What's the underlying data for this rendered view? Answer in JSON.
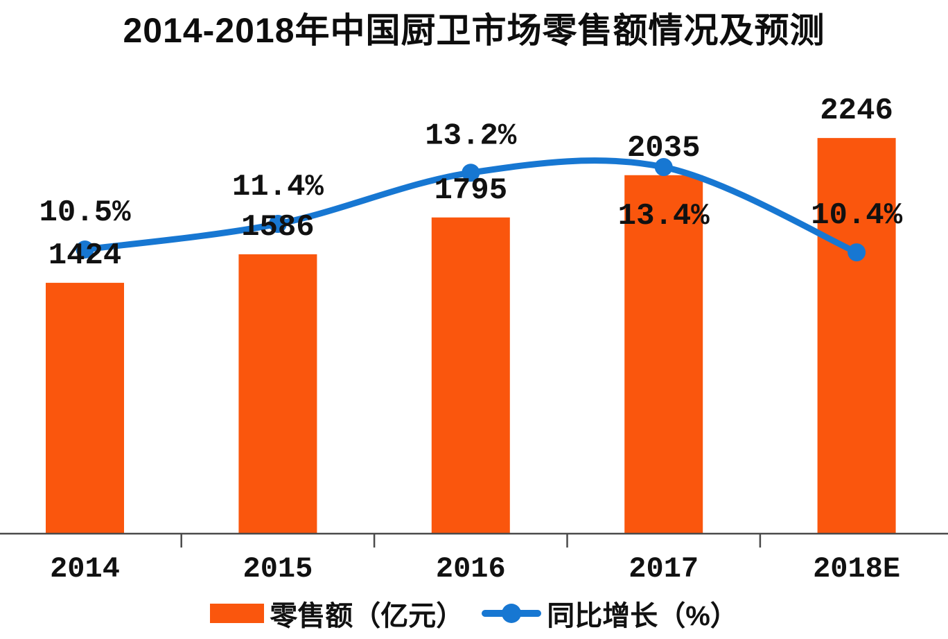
{
  "chart_data": {
    "type": "bar",
    "combo": "bar+line",
    "title": "2014-2018年中国厨卫市场零售额情况及预测",
    "categories": [
      "2014",
      "2015",
      "2016",
      "2017",
      "2018E"
    ],
    "series": [
      {
        "name": "零售额（亿元）",
        "type": "bar",
        "values": [
          1424,
          1586,
          1795,
          2035,
          2246
        ],
        "labels": [
          "1424",
          "1586",
          "1795",
          "2035",
          "2246"
        ],
        "color": "#FA560D",
        "axis": "left"
      },
      {
        "name": "同比增长（%）",
        "type": "line",
        "values": [
          10.5,
          11.4,
          13.2,
          13.4,
          10.4
        ],
        "labels": [
          "10.5%",
          "11.4%",
          "13.2%",
          "13.4%",
          "10.4%"
        ],
        "color": "#1777D2",
        "axis": "right"
      }
    ],
    "xlabel": "",
    "ylabel": "",
    "y1lim": [
      0,
      2636
    ],
    "y2lim": [
      0.5,
      16.84
    ],
    "layout": {
      "grid": false,
      "legend_position": "bottom",
      "pct_label_side": [
        "above",
        "above",
        "above",
        "below",
        "above"
      ],
      "background": "#ffffff",
      "axis_color": "#4a4a4a",
      "text_color": "#111111"
    }
  }
}
